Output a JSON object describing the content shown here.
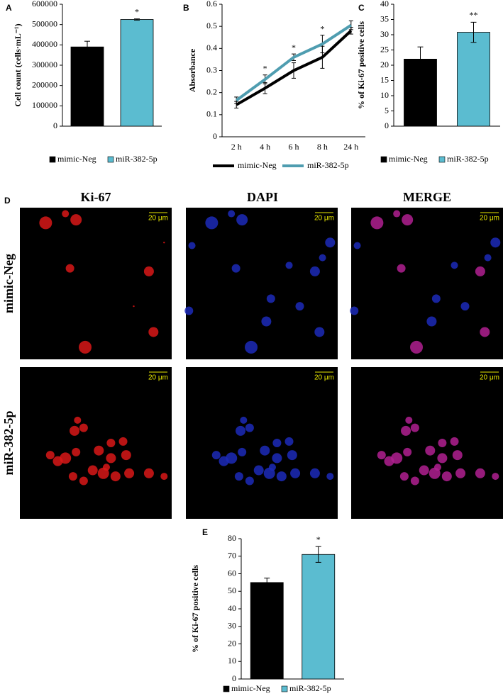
{
  "chart_data": [
    {
      "type": "bar",
      "panel": "A",
      "y_label": "Cell count (cells·mL⁻¹)",
      "categories": [
        null
      ],
      "series": [
        {
          "name": "mimic-Neg",
          "color": "#000000",
          "values": [
            390000
          ],
          "errors": [
            28000
          ]
        },
        {
          "name": "miR-382-5p",
          "color": "#5bbcd0",
          "values": [
            525000
          ],
          "errors": [
            3000
          ],
          "significance": "*"
        }
      ],
      "ylim": [
        0,
        600000
      ],
      "yticks": [
        0,
        100000,
        200000,
        300000,
        400000,
        500000,
        600000
      ]
    },
    {
      "type": "line",
      "panel": "B",
      "y_label": "Absorbance",
      "categories": [
        "2 h",
        "4 h",
        "6 h",
        "8 h",
        "24 h"
      ],
      "series": [
        {
          "name": "mimic-Neg",
          "color": "#000000",
          "values": [
            0.145,
            0.22,
            0.3,
            0.36,
            0.48
          ],
          "errors": [
            0.015,
            0.025,
            0.035,
            0.05,
            0.015
          ]
        },
        {
          "name": "miR-382-5p",
          "color": "#4f9db0",
          "values": [
            0.165,
            0.26,
            0.36,
            0.42,
            0.505
          ],
          "errors": [
            0.015,
            0.02,
            0.015,
            0.04,
            0.02
          ]
        }
      ],
      "significance": [
        null,
        "*",
        "*",
        "*",
        null
      ],
      "ylim": [
        0,
        0.6
      ],
      "yticks": [
        0,
        0.1,
        0.2,
        0.3,
        0.4,
        0.5,
        0.6
      ]
    },
    {
      "type": "bar",
      "panel": "C",
      "y_label": "% of Ki-67 positive cells",
      "categories": [
        null
      ],
      "series": [
        {
          "name": "mimic-Neg",
          "color": "#000000",
          "values": [
            22
          ],
          "errors": [
            4
          ]
        },
        {
          "name": "miR-382-5p",
          "color": "#5bbcd0",
          "values": [
            30.8
          ],
          "errors": [
            3.3
          ],
          "significance": "**"
        }
      ],
      "ylim": [
        0,
        40
      ],
      "yticks": [
        0,
        5,
        10,
        15,
        20,
        25,
        30,
        35,
        40
      ]
    },
    {
      "type": "bar",
      "panel": "E",
      "y_label": "% of Ki-67 positive cells",
      "categories": [
        null
      ],
      "series": [
        {
          "name": "mimic-Neg",
          "color": "#000000",
          "values": [
            55
          ],
          "errors": [
            2.5
          ]
        },
        {
          "name": "miR-382-5p",
          "color": "#5bbcd0",
          "values": [
            71
          ],
          "errors": [
            4.5
          ],
          "significance": "*"
        }
      ],
      "ylim": [
        0,
        80
      ],
      "yticks": [
        0,
        10,
        20,
        30,
        40,
        50,
        60,
        70,
        80
      ]
    }
  ],
  "panel_d": {
    "label": "D",
    "columns": [
      "Ki-67",
      "DAPI",
      "MERGE"
    ],
    "rows": [
      "mimic-Neg",
      "miR-382-5p"
    ],
    "scale_bar": "20 μm"
  }
}
